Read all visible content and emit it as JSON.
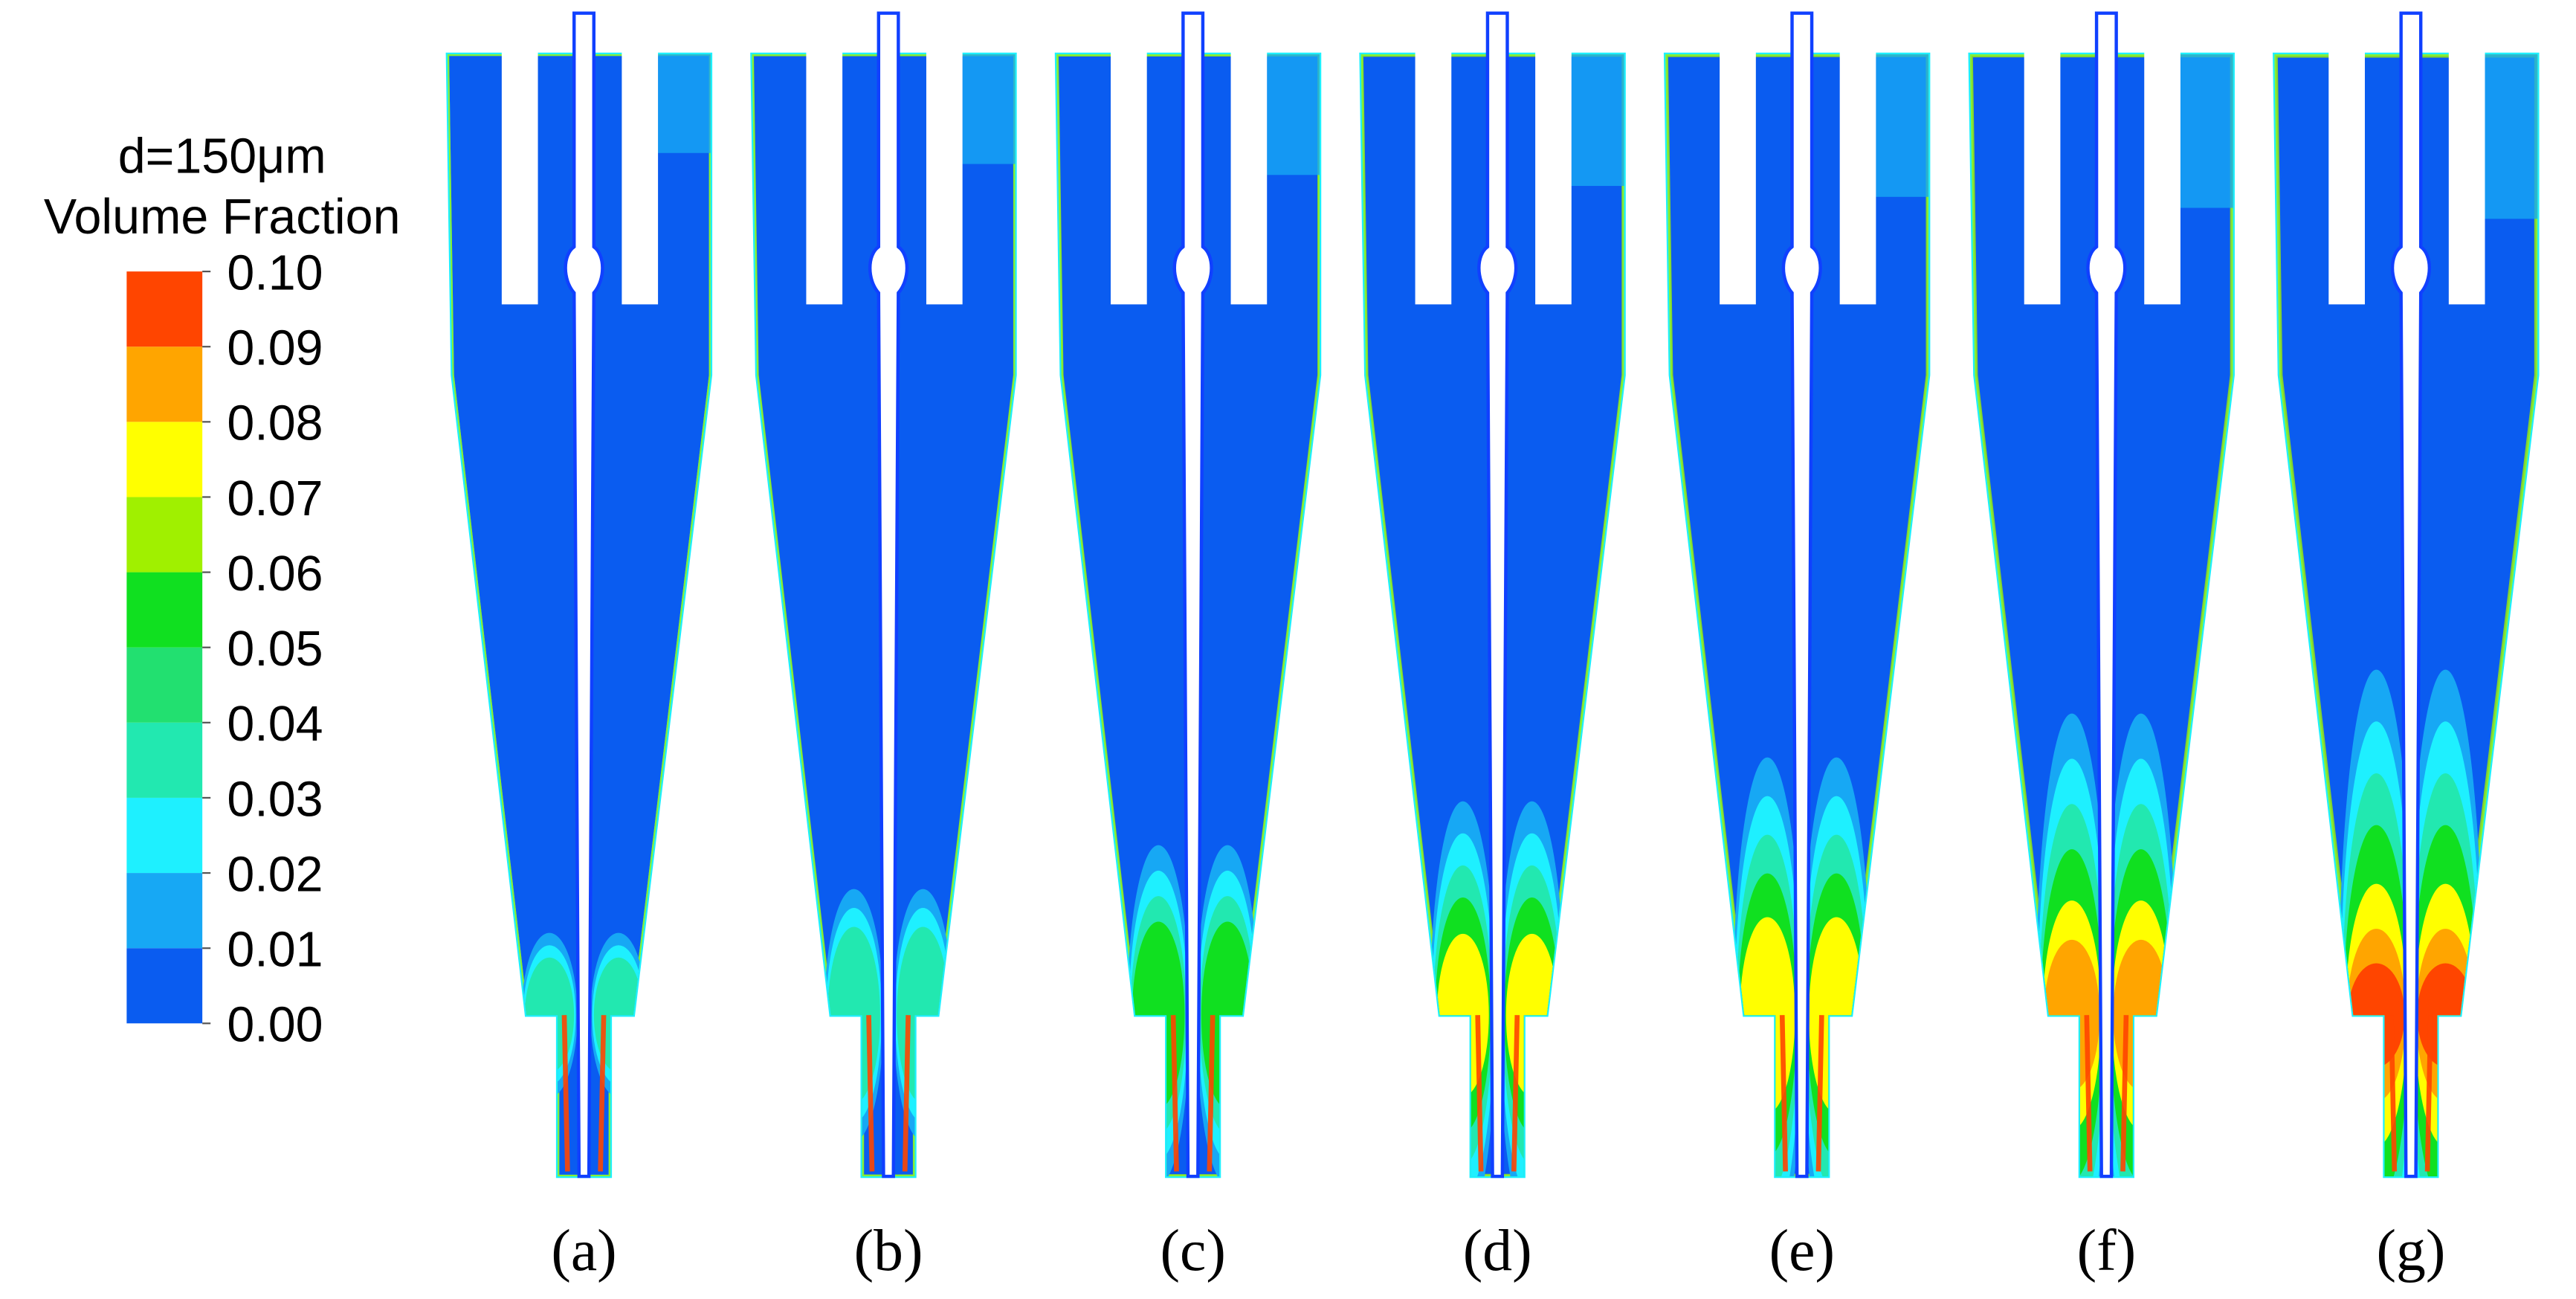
{
  "legend": {
    "title": [
      "d=150μm",
      "Volume Fraction"
    ],
    "ticks": [
      {
        "value": 0,
        "label": "0.00"
      },
      {
        "value": 0.01,
        "label": "0.01"
      },
      {
        "value": 0.02,
        "label": "0.02"
      },
      {
        "value": 0.03,
        "label": "0.03"
      },
      {
        "value": 0.04,
        "label": "0.04"
      },
      {
        "value": 0.05,
        "label": "0.05"
      },
      {
        "value": 0.06,
        "label": "0.06"
      },
      {
        "value": 0.07,
        "label": "0.07"
      },
      {
        "value": 0.08,
        "label": "0.08"
      },
      {
        "value": 0.09,
        "label": "0.09"
      },
      {
        "value": 0.1,
        "label": "0.10"
      }
    ],
    "colors": [
      "#0a5cf0",
      "#17a8f4",
      "#1ef0ff",
      "#22e8b0",
      "#22e070",
      "#10e020",
      "#a0f000",
      "#ffff00",
      "#ffa500",
      "#ff4500"
    ]
  },
  "panels": [
    "(a)",
    "(b)",
    "(c)",
    "(d)",
    "(e)",
    "(f)",
    "(g)"
  ]
}
